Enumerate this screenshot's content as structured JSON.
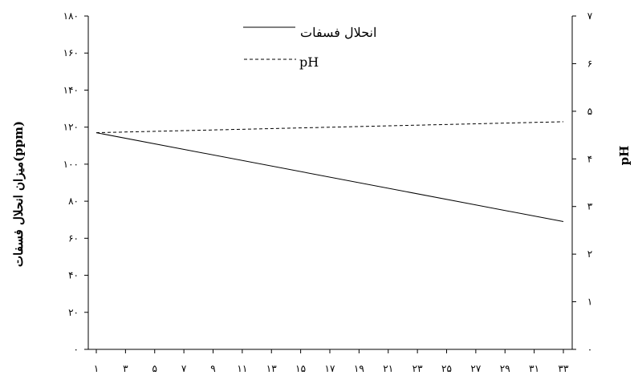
{
  "chart_data": {
    "type": "line",
    "x_ticks": [
      "۱",
      "۳",
      "۵",
      "۷",
      "۹",
      "۱۱",
      "۱۳",
      "۱۵",
      "۱۷",
      "۱۹",
      "۲۱",
      "۲۳",
      "۲۵",
      "۲۷",
      "۲۹",
      "۳۱",
      "۳۳"
    ],
    "x_range": [
      1,
      33
    ],
    "y_left": {
      "label": "میزان انحلال فسفات(ppm)",
      "range": [
        0,
        180
      ],
      "ticks": [
        {
          "value": 0,
          "label": "۰"
        },
        {
          "value": 20,
          "label": "۲۰"
        },
        {
          "value": 40,
          "label": "۴۰"
        },
        {
          "value": 60,
          "label": "۶۰"
        },
        {
          "value": 80,
          "label": "۸۰"
        },
        {
          "value": 100,
          "label": "۱۰۰"
        },
        {
          "value": 120,
          "label": "۱۲۰"
        },
        {
          "value": 140,
          "label": "۱۴۰"
        },
        {
          "value": 160,
          "label": "۱۶۰"
        },
        {
          "value": 180,
          "label": "۱۸۰"
        }
      ]
    },
    "y_right": {
      "label": "pH",
      "range": [
        0,
        7
      ],
      "ticks": [
        {
          "value": 0,
          "label": "۰"
        },
        {
          "value": 1,
          "label": "۱"
        },
        {
          "value": 2,
          "label": "۲"
        },
        {
          "value": 3,
          "label": "۳"
        },
        {
          "value": 4,
          "label": "۴"
        },
        {
          "value": 5,
          "label": "۵"
        },
        {
          "value": 6,
          "label": "۶"
        },
        {
          "value": 7,
          "label": "۷"
        }
      ]
    },
    "series": [
      {
        "name": "انحلال فسفات",
        "axis": "left",
        "style": "solid",
        "x": [
          1,
          33
        ],
        "y": [
          117,
          69
        ]
      },
      {
        "name": "pH",
        "axis": "right",
        "style": "dashed",
        "x": [
          1,
          33
        ],
        "y": [
          4.55,
          4.78
        ]
      }
    ],
    "grid": false,
    "legend_position": "top-center"
  }
}
